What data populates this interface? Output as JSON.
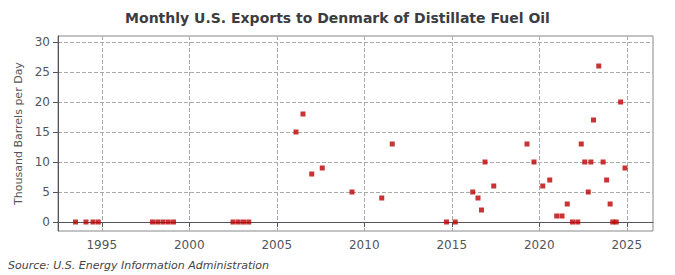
{
  "chart_data": {
    "type": "scatter",
    "title": "Monthly U.S. Exports to Denmark of Distillate Fuel Oil",
    "ylabel": "Thousand Barrels per Day",
    "annotations": [
      "Source: U.S. Energy Information Administration"
    ],
    "x": [
      1993.5,
      1994.1,
      1994.5,
      1994.8,
      1997.9,
      1998.2,
      1998.5,
      1998.8,
      1999.1,
      2002.5,
      2002.8,
      2003.1,
      2003.4,
      2006.1,
      2006.5,
      2007.0,
      2007.6,
      2009.3,
      2011.0,
      2011.6,
      2014.7,
      2015.2,
      2016.2,
      2016.5,
      2016.7,
      2016.9,
      2017.4,
      2019.3,
      2019.7,
      2020.2,
      2020.6,
      2021.0,
      2021.3,
      2021.6,
      2021.9,
      2022.2,
      2022.4,
      2022.6,
      2022.8,
      2022.95,
      2023.1,
      2023.4,
      2023.65,
      2023.85,
      2024.05,
      2024.2,
      2024.4,
      2024.65,
      2024.9
    ],
    "values": [
      0,
      0,
      0,
      0,
      0,
      0,
      0,
      0,
      0,
      0,
      0,
      0,
      0,
      15.0,
      18.0,
      8.0,
      9.0,
      5.0,
      4.0,
      13.0,
      0,
      0,
      5.0,
      4.0,
      2.0,
      10.0,
      6.0,
      13.0,
      10.0,
      6.0,
      7.0,
      1.0,
      1.0,
      3.0,
      0,
      0,
      13.0,
      10.0,
      5.0,
      10.0,
      17.0,
      26.0,
      10.0,
      7.0,
      3.0,
      0,
      0,
      20.0,
      9.0
    ],
    "color": "#bb0000",
    "marker": "square",
    "xlim": [
      1992.5,
      2026.5
    ],
    "xticks": [
      1995,
      2000,
      2005,
      2010,
      2015,
      2020,
      2025
    ],
    "ylim": [
      -1.5,
      31
    ],
    "yticks": [
      0,
      5,
      10,
      15,
      20,
      25,
      30
    ],
    "grid": true
  }
}
